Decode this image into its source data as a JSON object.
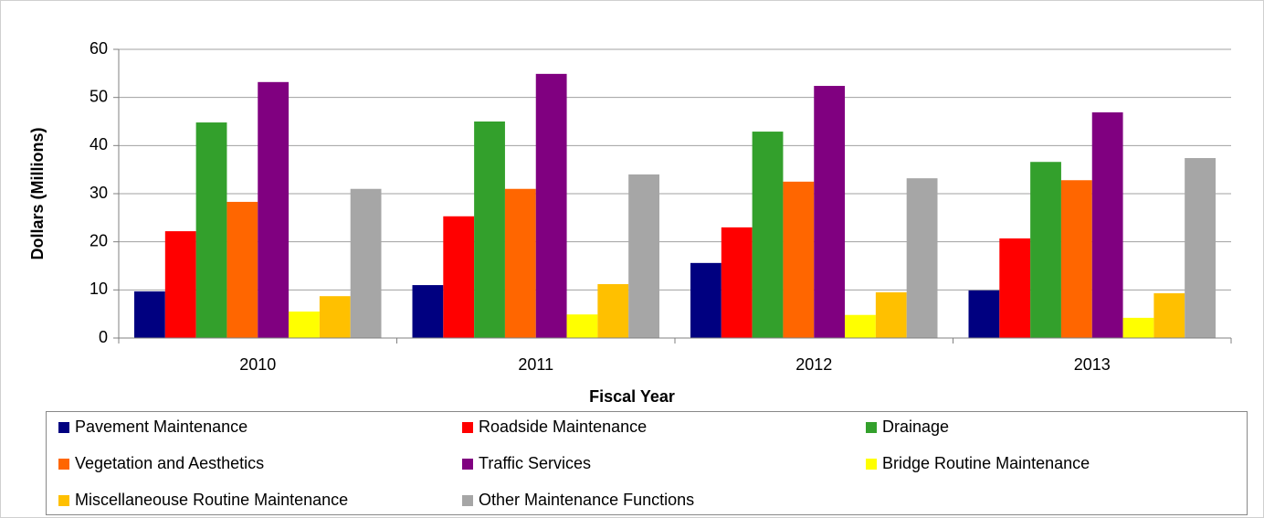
{
  "chart_data": {
    "type": "bar",
    "x_label": "Fiscal Year",
    "y_label": "Dollars (Millions)",
    "categories": [
      "2010",
      "2011",
      "2012",
      "2013"
    ],
    "series": [
      {
        "name": "Pavement Maintenance",
        "color": "#000080",
        "values": [
          9.7,
          11.0,
          15.6,
          9.9
        ]
      },
      {
        "name": "Roadside Maintenance",
        "color": "#ff0000",
        "values": [
          22.2,
          25.3,
          23.0,
          20.7
        ]
      },
      {
        "name": "Drainage",
        "color": "#33a02c",
        "values": [
          44.8,
          45.0,
          42.9,
          36.6
        ]
      },
      {
        "name": "Vegetation and Aesthetics",
        "color": "#ff6600",
        "values": [
          28.3,
          31.0,
          32.5,
          32.8
        ]
      },
      {
        "name": "Traffic Services",
        "color": "#800080",
        "values": [
          53.2,
          54.9,
          52.4,
          46.9
        ]
      },
      {
        "name": "Bridge Routine Maintenance",
        "color": "#ffff00",
        "values": [
          5.5,
          4.9,
          4.8,
          4.2
        ]
      },
      {
        "name": "Miscellaneouse Routine Maintenance",
        "color": "#ffc000",
        "values": [
          8.7,
          11.2,
          9.5,
          9.3
        ]
      },
      {
        "name": "Other Maintenance Functions",
        "color": "#a6a6a6",
        "values": [
          31.0,
          34.0,
          33.2,
          37.4
        ]
      }
    ],
    "ylim": [
      0,
      60
    ],
    "yticks": [
      0,
      10,
      20,
      30,
      40,
      50,
      60
    ],
    "grid": true,
    "legend": "bottom"
  }
}
